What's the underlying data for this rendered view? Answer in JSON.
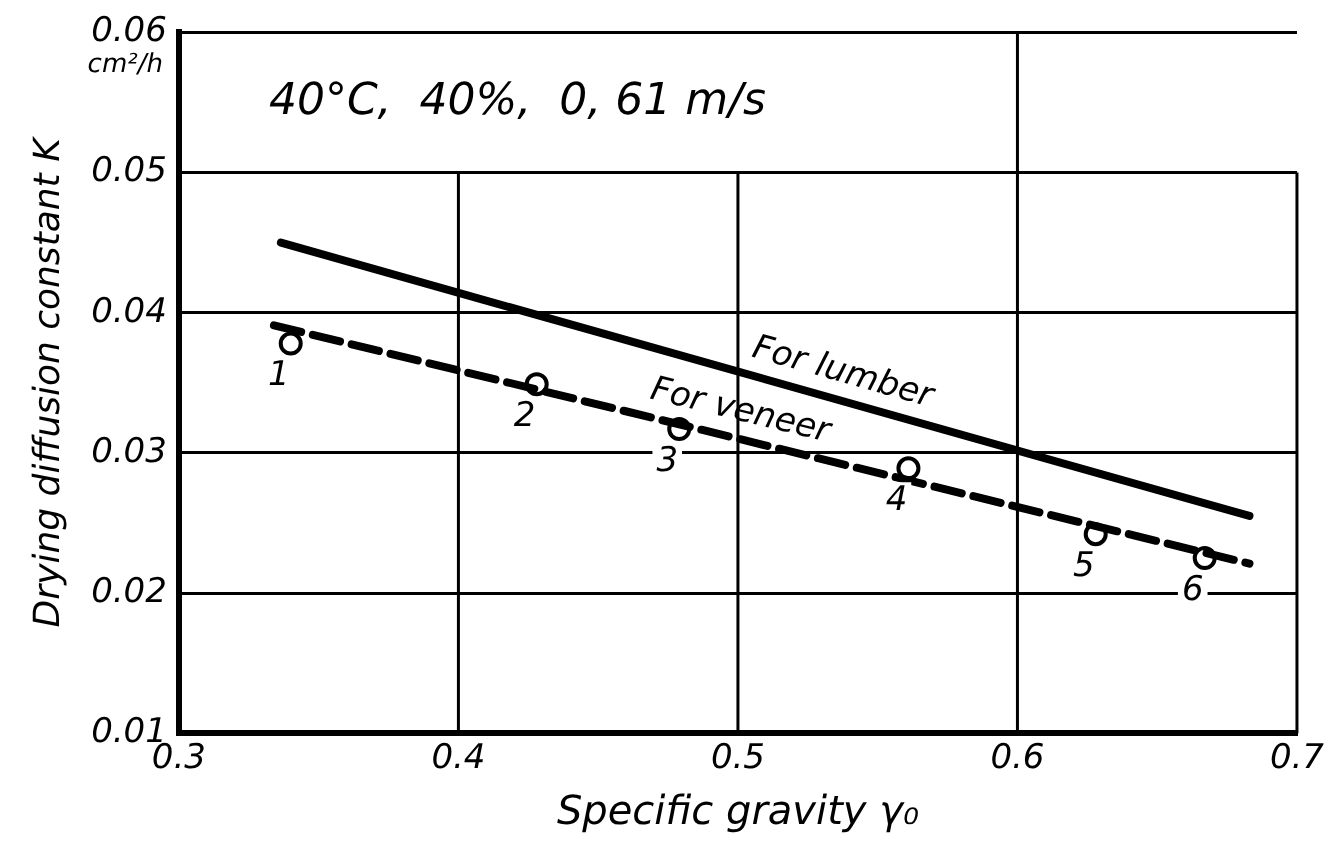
{
  "chart_data": {
    "type": "line",
    "xlabel": "Specific gravity γ₀",
    "ylabel": "Drying diffusion constant K",
    "xlim": [
      0.3,
      0.7
    ],
    "xticks": [
      0.3,
      0.4,
      0.5,
      0.6,
      0.7
    ],
    "ylim": [
      0.01,
      0.06
    ],
    "yticks": [
      0.01,
      0.02,
      0.03,
      0.04,
      0.05,
      0.06
    ],
    "grid": true,
    "legend": false,
    "series": [
      {
        "name": "For lumber",
        "color": "#000000",
        "line_style": "solid",
        "marker": "none",
        "x": [
          0.3365,
          0.683
        ],
        "values": [
          0.045,
          0.0255
        ]
      },
      {
        "name": "For veneer",
        "color": "#000000",
        "line_style": "dashed",
        "marker": "none",
        "x": [
          0.334,
          0.683
        ],
        "values": [
          0.0391,
          0.0221
        ]
      },
      {
        "type": "scatter",
        "color": "#000000",
        "marker": "circle",
        "x": [
          0.34,
          0.428,
          0.479,
          0.561,
          0.628,
          0.667
        ],
        "values": [
          0.0378,
          0.0349,
          0.0317,
          0.0289,
          0.0242,
          0.0225
        ]
      }
    ],
    "annotations": [
      "40°C,  40%,  0, 61 m/s",
      "cm²/h",
      {
        "text": "1",
        "x": 0.34,
        "y": 0.0378
      },
      {
        "text": "2",
        "x": 0.428,
        "y": 0.0349
      },
      {
        "text": "3",
        "x": 0.479,
        "y": 0.0317
      },
      {
        "text": "4",
        "x": 0.561,
        "y": 0.0289
      },
      {
        "text": "5",
        "x": 0.628,
        "y": 0.0242
      },
      {
        "text": "6",
        "x": 0.667,
        "y": 0.0225
      }
    ]
  }
}
